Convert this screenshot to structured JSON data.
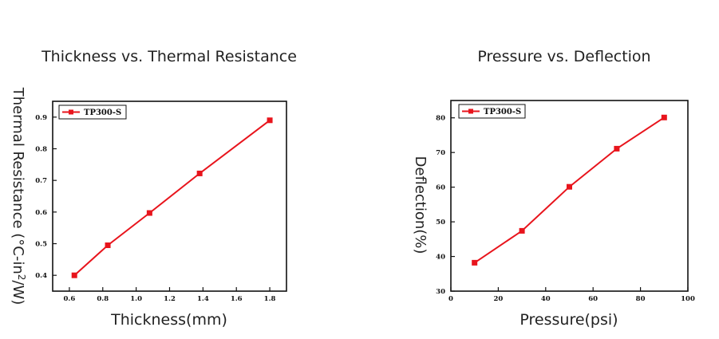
{
  "chart_data": [
    {
      "type": "line",
      "title": "Thickness vs. Thermal Resistance",
      "xlabel": "Thickness(mm)",
      "ylabel": "Thermal Resistance (°C-in²/W)",
      "xlim": [
        0.5,
        1.9
      ],
      "ylim": [
        0.35,
        0.95
      ],
      "xticks": [
        0.6,
        0.8,
        1.0,
        1.2,
        1.4,
        1.6,
        1.8
      ],
      "xtick_labels": [
        "0.6",
        "0.8",
        "1.0",
        "1.2",
        "1.4",
        "1.6",
        "1.8"
      ],
      "yticks": [
        0.4,
        0.5,
        0.6,
        0.7,
        0.8,
        0.9
      ],
      "ytick_labels": [
        "0.4",
        "0.5",
        "0.6",
        "0.7",
        "0.8",
        "0.9"
      ],
      "legend_position": "top-left",
      "grid": false,
      "series": [
        {
          "name": "TP300-S",
          "color": "#e8141c",
          "marker": "square",
          "x": [
            0.63,
            0.83,
            1.08,
            1.38,
            1.8
          ],
          "y": [
            0.4,
            0.495,
            0.597,
            0.722,
            0.89
          ]
        }
      ]
    },
    {
      "type": "line",
      "title": "Pressure vs. Deflection",
      "xlabel": "Pressure(psi)",
      "ylabel": "Deflection(%)",
      "xlim": [
        0,
        100
      ],
      "ylim": [
        30,
        85
      ],
      "xticks": [
        0,
        20,
        40,
        60,
        80,
        100
      ],
      "xtick_labels": [
        "0",
        "20",
        "40",
        "60",
        "80",
        "100"
      ],
      "yticks": [
        30,
        40,
        50,
        60,
        70,
        80
      ],
      "ytick_labels": [
        "30",
        "40",
        "50",
        "60",
        "70",
        "80"
      ],
      "legend_position": "top-left",
      "grid": false,
      "series": [
        {
          "name": "TP300-S",
          "color": "#e8141c",
          "marker": "square",
          "x": [
            10,
            30,
            50,
            70,
            90
          ],
          "y": [
            38.2,
            47.4,
            60.1,
            71.1,
            80.1
          ]
        }
      ]
    }
  ]
}
